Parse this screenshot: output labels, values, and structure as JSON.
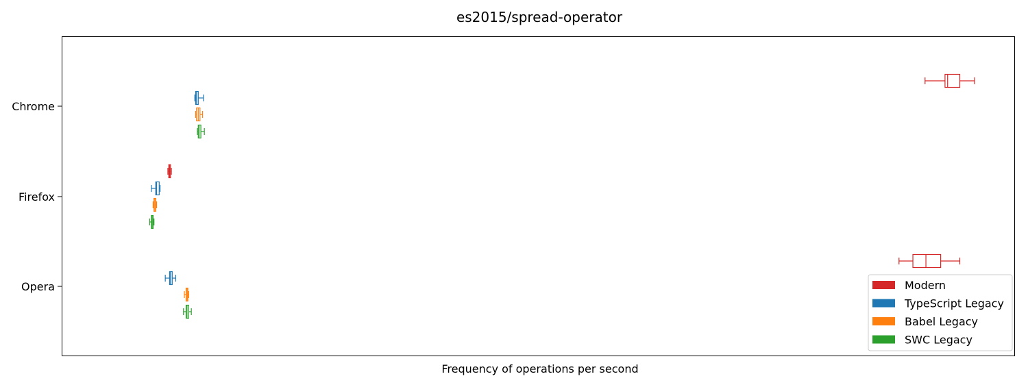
{
  "chart_data": {
    "type": "boxplot",
    "orientation": "horizontal",
    "title": "es2015/spread-operator",
    "xlabel": "Frequency of operations per second",
    "ylabel": "",
    "x_ticks_visible": false,
    "xlim": [
      0,
      1000
    ],
    "categories": [
      "Chrome",
      "Firefox",
      "Opera"
    ],
    "grid": false,
    "legend_position": "lower-right",
    "series": [
      {
        "name": "Modern",
        "color": "#d62728",
        "boxes": [
          {
            "whislo": 943,
            "q1": 966,
            "med": 969,
            "q3": 983,
            "whishi": 1000
          },
          {
            "whislo": 71,
            "q1": 72,
            "med": 73,
            "q3": 74,
            "whishi": 75
          },
          {
            "whislo": 913,
            "q1": 929,
            "med": 944,
            "q3": 961,
            "whishi": 983
          }
        ]
      },
      {
        "name": "TypeScript Legacy",
        "color": "#1f77b4",
        "boxes": [
          {
            "whislo": 102,
            "q1": 103,
            "med": 104,
            "q3": 106,
            "whishi": 112
          },
          {
            "whislo": 52,
            "q1": 57,
            "med": 58,
            "q3": 61,
            "whishi": 62
          },
          {
            "whislo": 68,
            "q1": 73,
            "med": 74,
            "q3": 76,
            "whishi": 80
          }
        ]
      },
      {
        "name": "Babel Legacy",
        "color": "#ff7f0e",
        "boxes": [
          {
            "whislo": 103,
            "q1": 104,
            "med": 106,
            "q3": 108,
            "whishi": 111
          },
          {
            "whislo": 54,
            "q1": 55,
            "med": 56,
            "q3": 57,
            "whishi": 58
          },
          {
            "whislo": 90,
            "q1": 92,
            "med": 93,
            "q3": 94,
            "whishi": 95
          }
        ]
      },
      {
        "name": "SWC Legacy",
        "color": "#2ca02c",
        "boxes": [
          {
            "whislo": 105,
            "q1": 106,
            "med": 107,
            "q3": 109,
            "whishi": 113
          },
          {
            "whislo": 50,
            "q1": 52,
            "med": 53,
            "q3": 54,
            "whishi": 55
          },
          {
            "whislo": 89,
            "q1": 92,
            "med": 93,
            "q3": 95,
            "whishi": 98
          }
        ]
      }
    ]
  }
}
